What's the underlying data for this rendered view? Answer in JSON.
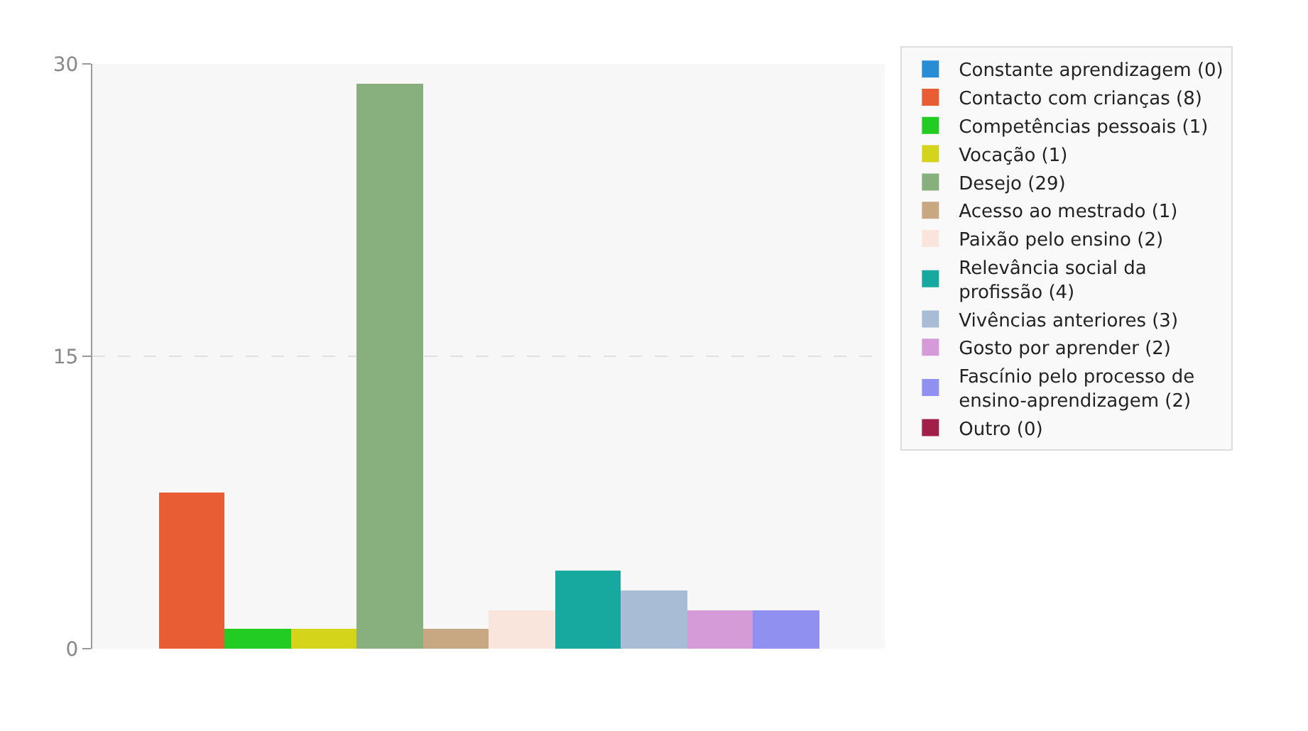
{
  "chart_data": {
    "type": "bar",
    "categories": [
      null,
      null,
      null,
      null,
      null,
      null,
      null,
      null,
      null,
      null,
      null,
      null
    ],
    "ylim": [
      0,
      30
    ],
    "yticks": [
      0,
      15,
      30
    ],
    "grid": "y",
    "legend": "top right",
    "series": [
      {
        "name": "Constante aprendizagem (0)",
        "color": "#2b8cd6",
        "values": [
          0,
          null,
          null,
          null,
          null,
          null,
          null,
          null,
          null,
          null,
          null,
          null
        ]
      },
      {
        "name": "Contacto com crianças (8)",
        "color": "#e85d33",
        "values": [
          null,
          8,
          null,
          null,
          null,
          null,
          null,
          null,
          null,
          null,
          null,
          null
        ]
      },
      {
        "name": "Competências pessoais (1)",
        "color": "#22cc22",
        "values": [
          null,
          null,
          1,
          null,
          null,
          null,
          null,
          null,
          null,
          null,
          null,
          null
        ]
      },
      {
        "name": "Vocação (1)",
        "color": "#d4d41a",
        "values": [
          null,
          null,
          null,
          1,
          null,
          null,
          null,
          null,
          null,
          null,
          null,
          null
        ]
      },
      {
        "name": "Desejo (29)",
        "color": "#88b07e",
        "values": [
          null,
          null,
          null,
          null,
          29,
          null,
          null,
          null,
          null,
          null,
          null,
          null
        ]
      },
      {
        "name": "Acesso ao mestrado (1)",
        "color": "#c8a882",
        "values": [
          null,
          null,
          null,
          null,
          null,
          1,
          null,
          null,
          null,
          null,
          null,
          null
        ]
      },
      {
        "name": "Paixão pelo ensino (2)",
        "color": "#fae5dc",
        "values": [
          null,
          null,
          null,
          null,
          null,
          null,
          2,
          null,
          null,
          null,
          null,
          null
        ]
      },
      {
        "name": "Relevância social da profissão (4)",
        "color": "#17a9a0",
        "values": [
          null,
          null,
          null,
          null,
          null,
          null,
          null,
          4,
          null,
          null,
          null,
          null
        ]
      },
      {
        "name": "Vivências anteriores (3)",
        "color": "#a8bcd6",
        "values": [
          null,
          null,
          null,
          null,
          null,
          null,
          null,
          null,
          3,
          null,
          null,
          null
        ]
      },
      {
        "name": "Gosto por aprender (2)",
        "color": "#d59bd9",
        "values": [
          null,
          null,
          null,
          null,
          null,
          null,
          null,
          null,
          null,
          2,
          null,
          null
        ]
      },
      {
        "name": "Fascínio pelo processo de ensino-aprendizagem (2)",
        "color": "#9090f0",
        "values": [
          null,
          null,
          null,
          null,
          null,
          null,
          null,
          null,
          null,
          null,
          2,
          null
        ]
      },
      {
        "name": "Outro (0)",
        "color": "#a0204a",
        "values": [
          null,
          null,
          null,
          null,
          null,
          null,
          null,
          null,
          null,
          null,
          null,
          0
        ]
      }
    ]
  }
}
